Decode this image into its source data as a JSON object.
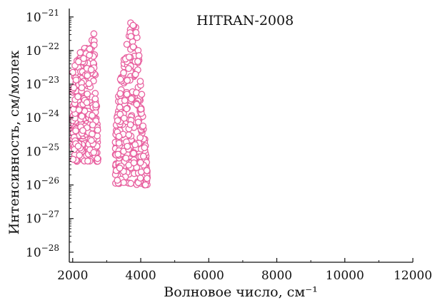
{
  "chart_data": {
    "type": "scatter",
    "annotation": "HITRAN-2008",
    "xlabel": "Волновое число, см⁻¹",
    "ylabel": "Интенсивность, см/молек",
    "xlim": [
      1900,
      12000
    ],
    "ylim_exp": [
      -28.3,
      -20.75
    ],
    "yscale": "log",
    "grid": false,
    "legend": "none",
    "x_ticks": [
      2000,
      4000,
      6000,
      8000,
      10000,
      12000
    ],
    "x_tick_labels": [
      "2000",
      "4000",
      "6000",
      "8000",
      "10000",
      "12000"
    ],
    "y_tick_exponents": [
      -21,
      -22,
      -23,
      -24,
      -25,
      -26,
      -27,
      -28
    ],
    "y_tick_base": "10",
    "series": [
      {
        "marker": "open-circle",
        "color": "#e8609f",
        "bands": [
          {
            "x_range": [
              2000,
              2750
            ],
            "y_floor_exp": -25.3,
            "envelope_exp": [
              [
                2000,
                -22.6
              ],
              [
                2150,
                -22.2
              ],
              [
                2300,
                -21.9
              ],
              [
                2450,
                -21.9
              ],
              [
                2550,
                -21.4
              ],
              [
                2620,
                -21.4
              ],
              [
                2750,
                -24.8
              ]
            ]
          },
          {
            "x_range": [
              3250,
              4200
            ],
            "y_floor_exp": -26.0,
            "envelope_exp": [
              [
                3250,
                -24.5
              ],
              [
                3350,
                -23.1
              ],
              [
                3500,
                -22.3
              ],
              [
                3650,
                -21.2
              ],
              [
                3780,
                -20.9
              ],
              [
                3900,
                -21.3
              ],
              [
                4050,
                -23.6
              ],
              [
                4200,
                -25.6
              ]
            ]
          }
        ]
      }
    ]
  }
}
